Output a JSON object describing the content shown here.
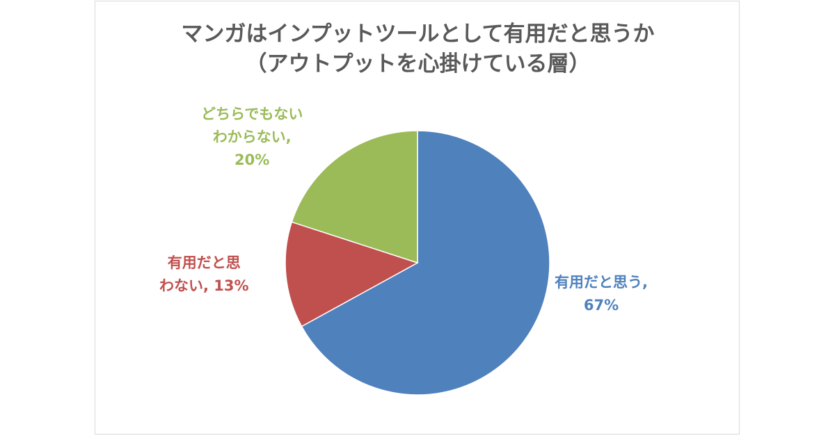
{
  "chart_data": {
    "type": "pie",
    "title": "マンガはインプットツールとして有用だと思うか",
    "subtitle": "（アウトプットを心掛けている層）",
    "legend": "none",
    "slices": [
      {
        "category": "有用だと思う",
        "value": 67,
        "label_lines": [
          "有用だと思う,",
          "67%"
        ],
        "color": "#4f81bd"
      },
      {
        "category": "有用だと思わない",
        "value": 13,
        "label_lines": [
          "有用だと思",
          "わない, 13%"
        ],
        "color": "#c0504d"
      },
      {
        "category": "どちらでもないわからない",
        "value": 20,
        "label_lines": [
          "どちらでもない",
          "わからない,",
          "20%"
        ],
        "color": "#9bbb59"
      }
    ]
  }
}
